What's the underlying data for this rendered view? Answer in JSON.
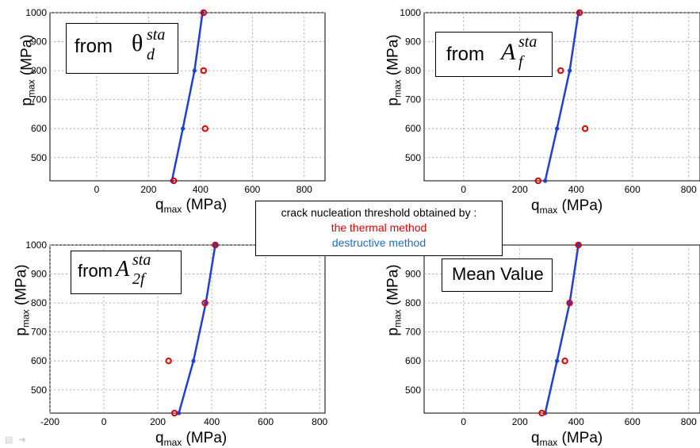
{
  "legend": {
    "title": "crack nucleation threshold obtained by :",
    "thermal_label": "the thermal method",
    "destructive_label": "destructive method",
    "thermal_color": "#e00000",
    "destructive_color": "#1f6fbf"
  },
  "axis_labels": {
    "y_main": "p",
    "y_sub": "max",
    "y_unit": " (MPa)",
    "x_main": "q",
    "x_sub": "max",
    "x_unit": " (MPa)"
  },
  "annotations": {
    "a1_prefix": "from ",
    "a1_symbol": "θ",
    "a1_sup": "sta",
    "a1_sub": "d",
    "a2_prefix": "from ",
    "a2_symbol": "A",
    "a2_sup": "sta",
    "a2_sub": "f",
    "a3_prefix": "from",
    "a3_symbol": "A",
    "a3_sup": "sta",
    "a3_sub": "2f",
    "a4_text": "Mean Value"
  },
  "nav_icons": [
    "list-icon",
    "arrow-right-icon"
  ],
  "chart_data": [
    {
      "type": "line",
      "panel": "top-left",
      "grid": true,
      "xlabel": "qmax (MPa)",
      "ylabel": "pmax (MPa)",
      "xlim": [
        -180,
        880
      ],
      "ylim": [
        420,
        1000
      ],
      "xticks": [
        "0",
        "200",
        "400",
        "600",
        "800"
      ],
      "yticks": [
        "500",
        "600",
        "700",
        "800",
        "900",
        "1000"
      ],
      "series": [
        {
          "name": "destructive method",
          "style": "line",
          "x": [
            290,
            332,
            377,
            408
          ],
          "y": [
            420,
            600,
            800,
            1000
          ]
        },
        {
          "name": "the thermal method",
          "style": "markers",
          "x": [
            297,
            418,
            412,
            412
          ],
          "y": [
            420,
            600,
            800,
            1000
          ]
        }
      ]
    },
    {
      "type": "line",
      "panel": "top-right",
      "grid": true,
      "xlabel": "qmax (MPa)",
      "ylabel": "pmax (MPa)",
      "xlim": [
        -140,
        840
      ],
      "ylim": [
        420,
        1000
      ],
      "xticks": [
        "0",
        "200",
        "400",
        "600",
        "800"
      ],
      "yticks": [
        "500",
        "600",
        "700",
        "800",
        "900",
        "1000"
      ],
      "series": [
        {
          "name": "destructive method",
          "style": "line",
          "x": [
            290,
            332,
            377,
            408
          ],
          "y": [
            420,
            600,
            800,
            1000
          ]
        },
        {
          "name": "the thermal method",
          "style": "markers",
          "x": [
            265,
            432,
            345,
            412
          ],
          "y": [
            420,
            600,
            800,
            1000
          ]
        }
      ]
    },
    {
      "type": "line",
      "panel": "bottom-left",
      "grid": true,
      "xlabel": "qmax (MPa)",
      "ylabel": "pmax (MPa)",
      "xlim": [
        -200,
        820
      ],
      "ylim": [
        420,
        1000
      ],
      "xticks": [
        "-200",
        "0",
        "200",
        "400",
        "600",
        "800"
      ],
      "yticks": [
        "500",
        "600",
        "700",
        "800",
        "900",
        "1000"
      ],
      "series": [
        {
          "name": "destructive method",
          "style": "line",
          "x": [
            278,
            332,
            378,
            413
          ],
          "y": [
            420,
            600,
            800,
            1000
          ]
        },
        {
          "name": "the thermal method",
          "style": "markers",
          "x": [
            262,
            240,
            375,
            413
          ],
          "y": [
            420,
            600,
            800,
            1000
          ]
        }
      ]
    },
    {
      "type": "line",
      "panel": "bottom-right",
      "grid": true,
      "xlabel": "qmax (MPa)",
      "ylabel": "pmax (MPa)",
      "xlim": [
        -140,
        840
      ],
      "ylim": [
        420,
        1000
      ],
      "xticks": [
        "0",
        "200",
        "400",
        "600",
        "800"
      ],
      "yticks": [
        "500",
        "600",
        "700",
        "800",
        "900"
      ],
      "series": [
        {
          "name": "destructive method",
          "style": "line",
          "x": [
            290,
            332,
            377,
            408
          ],
          "y": [
            420,
            600,
            800,
            1000
          ]
        },
        {
          "name": "the thermal method",
          "style": "markers",
          "x": [
            278,
            360,
            377,
            408
          ],
          "y": [
            420,
            600,
            800,
            1000
          ]
        }
      ]
    }
  ]
}
